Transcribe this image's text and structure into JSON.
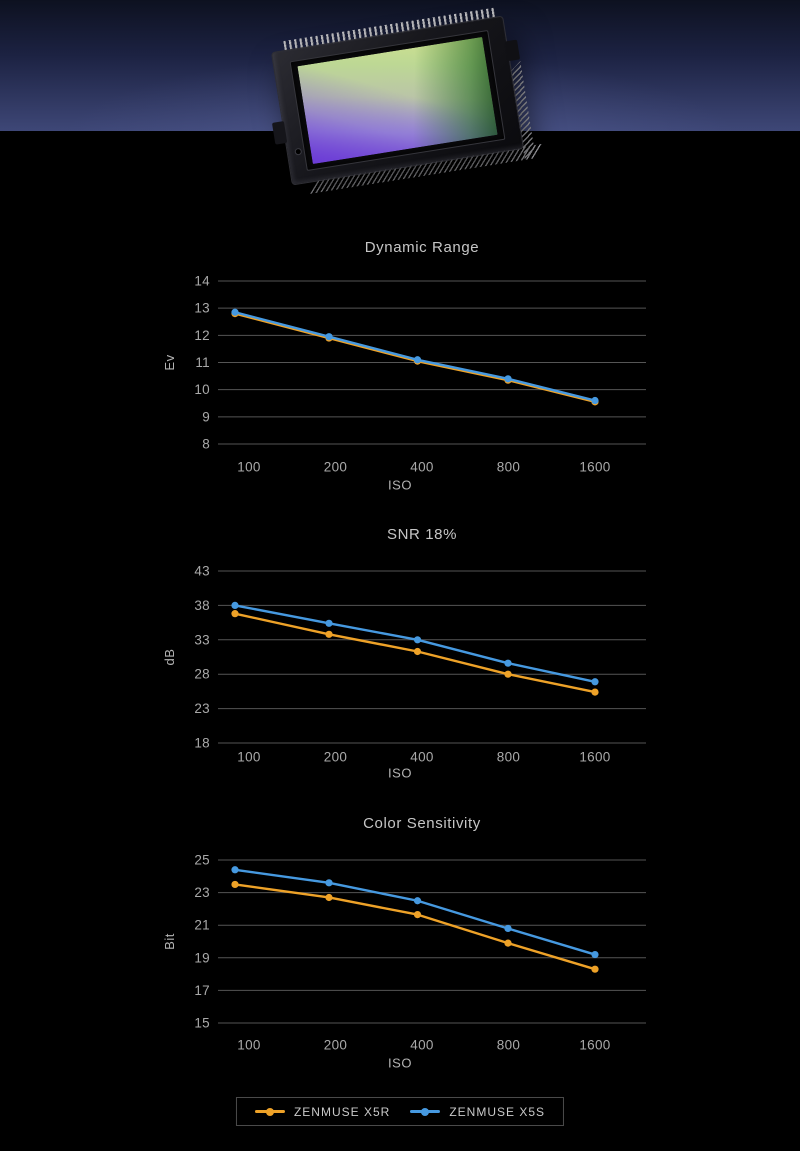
{
  "hero": {
    "image_name": "cmos-sensor",
    "band_gradient_top": "#0d1120",
    "band_gradient_mid": "#1c2242",
    "band_gradient_bottom": "#3e4777"
  },
  "chart_data": [
    {
      "type": "line",
      "title": "Dynamic Range",
      "xlabel": "ISO",
      "ylabel": "Ev",
      "categories": [
        "100",
        "200",
        "400",
        "800",
        "1600"
      ],
      "y_ticks": [
        14,
        13,
        12,
        11,
        10,
        9,
        8
      ],
      "ylim": [
        8,
        14
      ],
      "grid": true,
      "legend_position": "bottom-shared",
      "series": [
        {
          "name": "ZENMUSE X5R",
          "color": "#EEA228",
          "values": [
            12.8,
            11.9,
            11.05,
            10.35,
            9.55
          ]
        },
        {
          "name": "ZENMUSE X5S",
          "color": "#4699E0",
          "values": [
            12.85,
            11.95,
            11.1,
            10.4,
            9.6
          ]
        }
      ]
    },
    {
      "type": "line",
      "title": "SNR 18%",
      "xlabel": "ISO",
      "ylabel": "dB",
      "categories": [
        "100",
        "200",
        "400",
        "800",
        "1600"
      ],
      "y_ticks": [
        43,
        38,
        33,
        28,
        23,
        18
      ],
      "ylim": [
        18,
        43
      ],
      "grid": true,
      "legend_position": "bottom-shared",
      "series": [
        {
          "name": "ZENMUSE X5R",
          "color": "#EEA228",
          "values": [
            36.8,
            33.8,
            31.3,
            28.0,
            25.4
          ]
        },
        {
          "name": "ZENMUSE X5S",
          "color": "#4699E0",
          "values": [
            38.0,
            35.4,
            33.0,
            29.6,
            26.9
          ]
        }
      ]
    },
    {
      "type": "line",
      "title": "Color Sensitivity",
      "xlabel": "ISO",
      "ylabel": "Bit",
      "categories": [
        "100",
        "200",
        "400",
        "800",
        "1600"
      ],
      "y_ticks": [
        25,
        23,
        21,
        19,
        17,
        15
      ],
      "ylim": [
        15,
        25
      ],
      "grid": true,
      "legend_position": "bottom-shared",
      "series": [
        {
          "name": "ZENMUSE X5R",
          "color": "#EEA228",
          "values": [
            23.5,
            22.7,
            21.65,
            19.9,
            18.3
          ]
        },
        {
          "name": "ZENMUSE X5S",
          "color": "#4699E0",
          "values": [
            24.4,
            23.6,
            22.5,
            20.8,
            19.2
          ]
        }
      ]
    }
  ],
  "legend": {
    "items": [
      {
        "label": "ZENMUSE X5R",
        "color": "#EEA228"
      },
      {
        "label": "ZENMUSE X5S",
        "color": "#4699E0"
      }
    ]
  },
  "style_colors": {
    "gridline": "#555555",
    "tick_text": "#a9a9a9",
    "title_text": "#c6c6c6",
    "legend_border": "#4a4a4a"
  }
}
